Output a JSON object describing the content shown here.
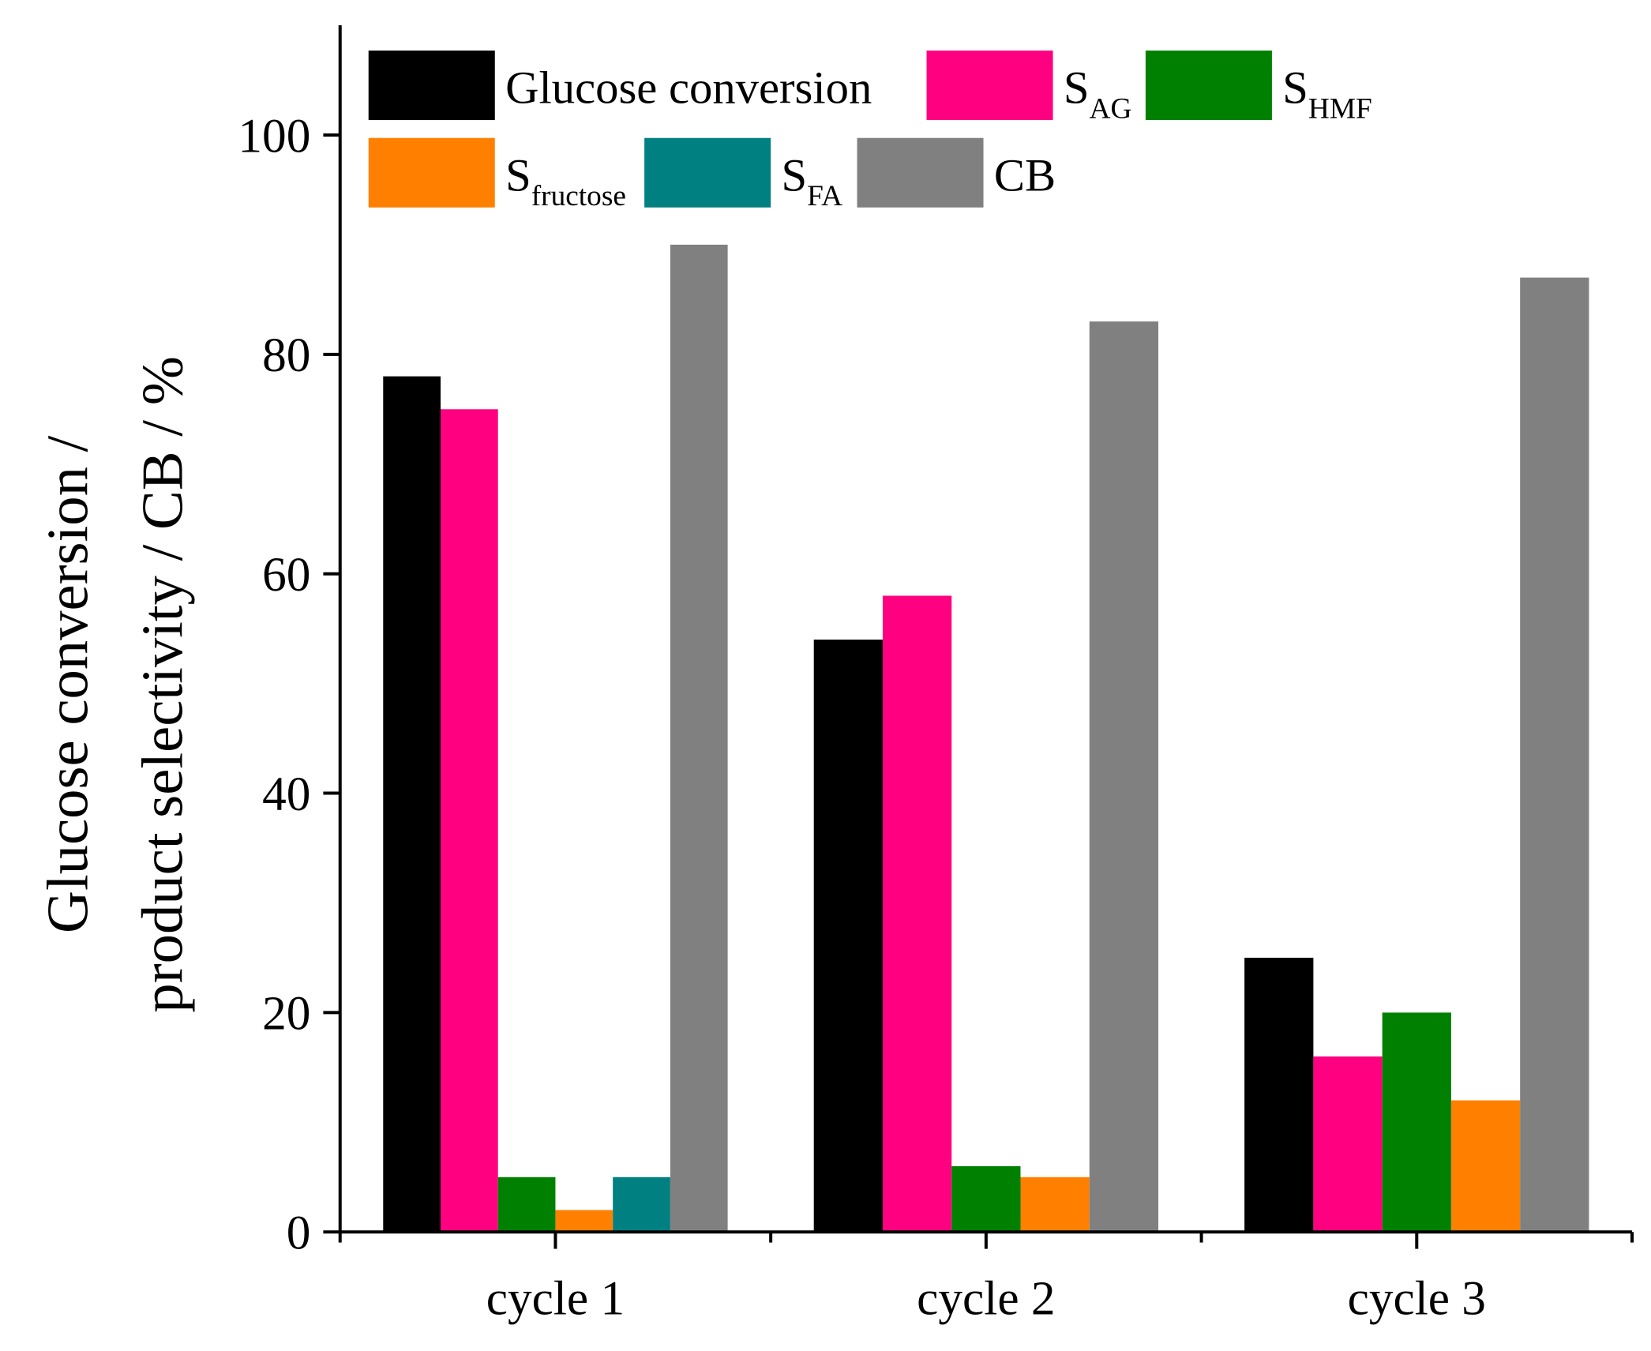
{
  "chart_data": {
    "type": "bar",
    "ylabel": [
      "Glucose conversion /",
      "product selectivity / CB / %"
    ],
    "categories": [
      "cycle 1",
      "cycle 2",
      "cycle 3"
    ],
    "series": [
      {
        "name": "Glucose conversion",
        "color": "#000000",
        "values": [
          78,
          54,
          25
        ]
      },
      {
        "name": "S",
        "subscript": "AG",
        "color": "#ff0080",
        "values": [
          75,
          58,
          16
        ]
      },
      {
        "name": "S",
        "subscript": "HMF",
        "color": "#008000",
        "values": [
          5,
          6,
          20
        ]
      },
      {
        "name": "S",
        "subscript": "fructose",
        "color": "#ff8000",
        "values": [
          2,
          5,
          12
        ]
      },
      {
        "name": "S",
        "subscript": "FA",
        "color": "#008080",
        "values": [
          5,
          null,
          null
        ]
      },
      {
        "name": "CB",
        "color": "#808080",
        "values": [
          90,
          83,
          87
        ]
      }
    ],
    "ylim": [
      0,
      110
    ],
    "yticks": [
      0,
      20,
      40,
      60,
      80,
      100
    ],
    "grid": false,
    "legend_loc": "upper left"
  }
}
